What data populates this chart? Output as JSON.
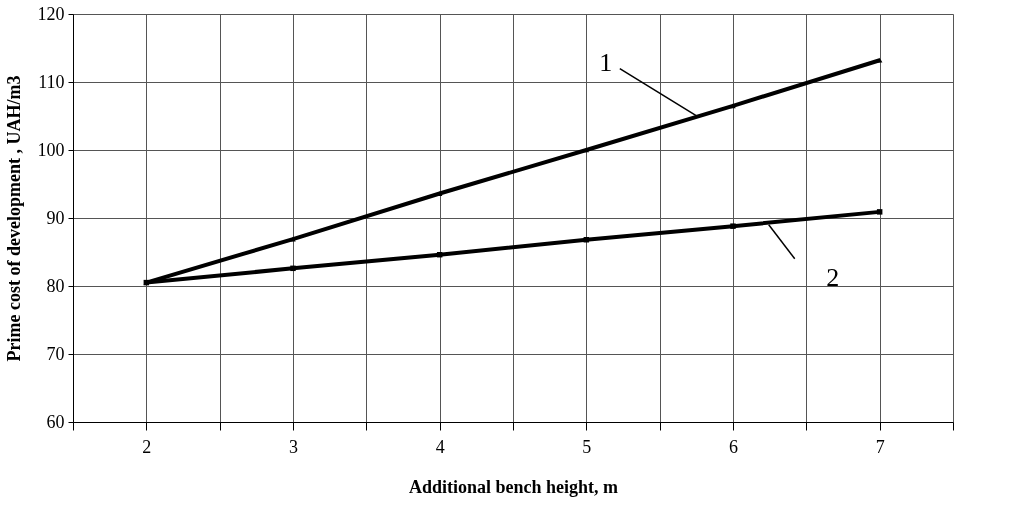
{
  "chart_data": {
    "type": "line",
    "xlabel": "Additional bench height, m",
    "ylabel": "Prime cost of development , UAH/m3",
    "x": [
      2,
      3,
      4,
      5,
      6,
      7
    ],
    "series": [
      {
        "color": "#000000",
        "marker": "triangle",
        "values": [
          80.5,
          86.9,
          93.6,
          100,
          106.5,
          113.2
        ]
      },
      {
        "color": "#000000",
        "marker": "square",
        "values": [
          80.5,
          82.6,
          84.6,
          86.8,
          88.8,
          90.9
        ]
      }
    ],
    "xlim": [
      1.5,
      7.5
    ],
    "xticks": [
      {
        "value": 1.5,
        "label": null
      },
      2,
      {
        "value": 2.5,
        "label": null
      },
      3,
      {
        "value": 3.5,
        "label": null
      },
      4,
      {
        "value": 4.5,
        "label": null
      },
      5,
      {
        "value": 5.5,
        "label": null
      },
      6,
      {
        "value": 6.5,
        "label": null
      },
      7,
      {
        "value": 7.5,
        "label": null
      }
    ],
    "ylim": [
      60,
      120
    ],
    "yticks": [
      60,
      70,
      80,
      90,
      100,
      110,
      120
    ],
    "grid": true,
    "line_style": "solid",
    "annotations": [
      {
        "text": "1",
        "x": 5.76,
        "y": 104.9
      },
      {
        "text": "2",
        "x": 6.23,
        "y": 89.3
      }
    ]
  }
}
